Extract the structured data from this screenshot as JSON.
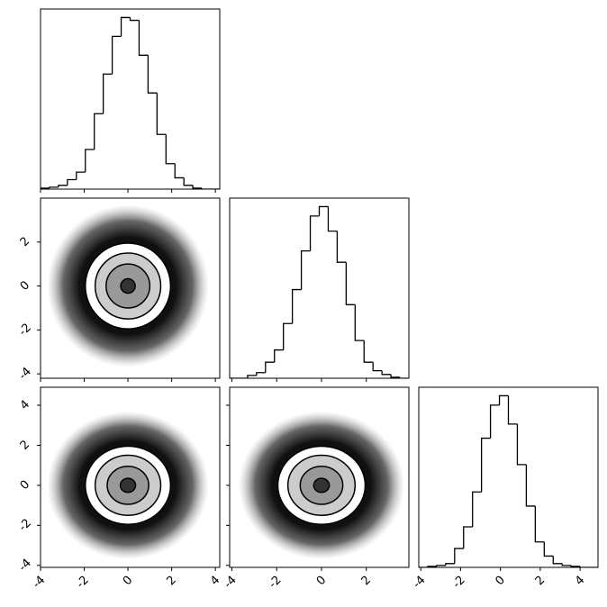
{
  "chart_data": [
    {
      "type": "histogram",
      "color": "#000000",
      "bins": [
        -4,
        -3.59,
        -3.18,
        -2.77,
        -2.36,
        -1.95,
        -1.54,
        -1.13,
        -0.72,
        -0.31,
        0.1,
        0.51,
        0.92,
        1.33,
        1.74,
        2.15,
        2.56,
        2.97,
        3.38,
        3.79,
        4.2
      ],
      "values": [
        1,
        2,
        4,
        10,
        18,
        42,
        80,
        122,
        162,
        182,
        179,
        142,
        102,
        58,
        27,
        12,
        4,
        1,
        0,
        0
      ],
      "xlim": [
        -4,
        4.2
      ],
      "ylim": [
        0,
        191
      ],
      "xticks": [
        -4,
        -2,
        0,
        2,
        4
      ]
    },
    {
      "type": "density2d",
      "color": "#000000",
      "xlim": [
        -4,
        4.2
      ],
      "ylim": [
        -4.2,
        4.0
      ],
      "xticks": [
        -4,
        -2,
        0,
        2,
        4
      ],
      "yticks": [
        -4,
        -2,
        0,
        2
      ],
      "center": [
        0,
        0
      ],
      "contour_radii": [
        0.33,
        1.0,
        1.5,
        1.95
      ],
      "scatter_radius": 3.7
    },
    {
      "type": "histogram",
      "color": "#000000",
      "bins": [
        -4.1,
        -3.7,
        -3.3,
        -2.9,
        -2.5,
        -2.1,
        -1.7,
        -1.3,
        -0.9,
        -0.5,
        -0.1,
        0.3,
        0.7,
        1.1,
        1.5,
        1.9,
        2.3,
        2.7,
        3.1,
        3.5,
        3.9
      ],
      "values": [
        0,
        0,
        3,
        6,
        17,
        30,
        58,
        94,
        135,
        172,
        182,
        156,
        123,
        78,
        40,
        17,
        8,
        4,
        1,
        0
      ],
      "xlim": [
        -4.1,
        3.9
      ],
      "ylim": [
        0,
        191
      ],
      "xticks": [
        -4,
        -2,
        0,
        2
      ]
    },
    {
      "type": "density2d",
      "color": "#000000",
      "xlim": [
        -4,
        4.2
      ],
      "ylim": [
        -4.1,
        4.9
      ],
      "xticks": [
        -4,
        -2,
        0,
        2,
        4
      ],
      "yticks": [
        -4,
        -2,
        0,
        2,
        4
      ],
      "center": [
        0,
        0
      ],
      "contour_radii": [
        0.35,
        0.95,
        1.5,
        1.95
      ],
      "scatter_radius": 3.7
    },
    {
      "type": "density2d",
      "color": "#000000",
      "xlim": [
        -4.1,
        3.9
      ],
      "ylim": [
        -4.1,
        4.9
      ],
      "xticks": [
        -4,
        -2,
        0,
        2
      ],
      "yticks": [
        -4,
        -2,
        0,
        2,
        4
      ],
      "center": [
        0,
        0
      ],
      "contour_radii": [
        0.35,
        0.95,
        1.5,
        1.95
      ],
      "scatter_radius": 3.7
    },
    {
      "type": "histogram",
      "color": "#000000",
      "bins": [
        -4.1,
        -3.65,
        -3.2,
        -2.75,
        -2.3,
        -1.85,
        -1.4,
        -0.95,
        -0.5,
        -0.05,
        0.4,
        0.85,
        1.3,
        1.75,
        2.2,
        2.65,
        3.1,
        3.55,
        4,
        4.45,
        4.9
      ],
      "values": [
        0,
        1,
        2,
        4,
        20,
        43,
        80,
        137,
        172,
        182,
        152,
        109,
        65,
        27,
        12,
        4,
        2,
        1,
        0,
        0
      ],
      "xlim": [
        -4.1,
        4.9
      ],
      "ylim": [
        0,
        191
      ],
      "xticks": [
        -4,
        -2,
        0,
        2,
        4
      ]
    }
  ]
}
